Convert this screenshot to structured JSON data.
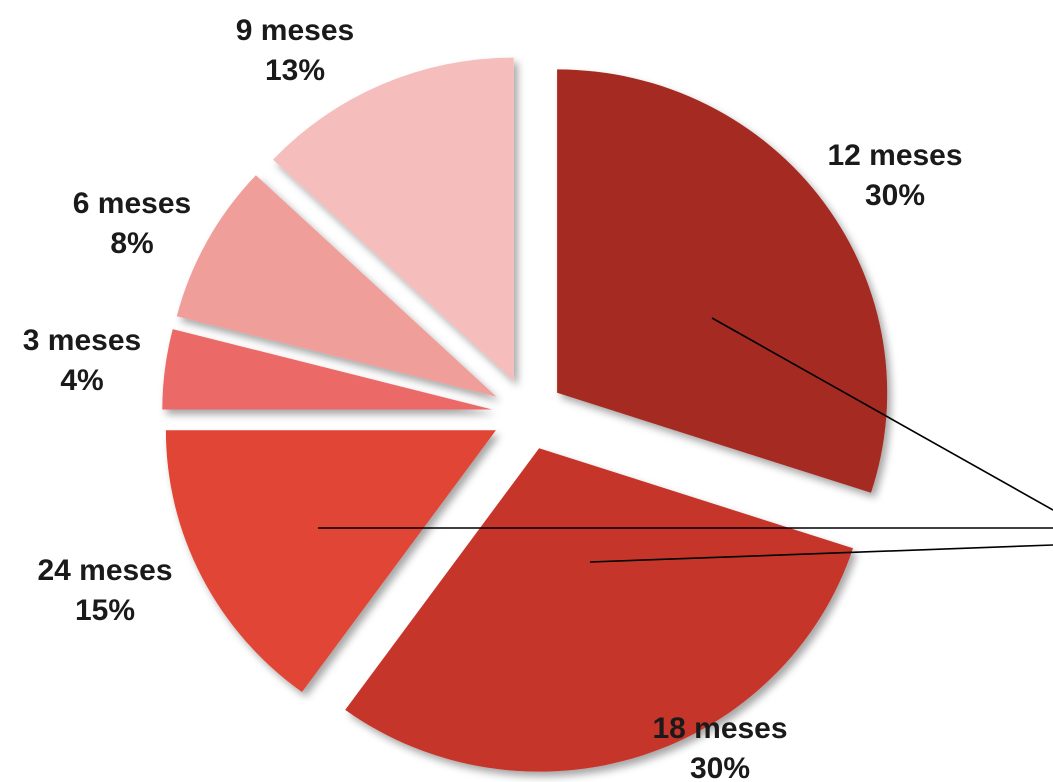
{
  "chart_data": {
    "type": "pie",
    "exploded": true,
    "title": "",
    "slices": [
      {
        "label": "12 meses",
        "pct_label": "30%",
        "value": 30,
        "color": "#A52A22"
      },
      {
        "label": "18 meses",
        "pct_label": "30%",
        "value": 30,
        "color": "#C6362C"
      },
      {
        "label": "24 meses",
        "pct_label": "15%",
        "value": 15,
        "color": "#E04434"
      },
      {
        "label": "3 meses",
        "pct_label": "4%",
        "value": 4,
        "color": "#EB6B67"
      },
      {
        "label": "6 meses",
        "pct_label": "8%",
        "value": 8,
        "color": "#EF9E9A"
      },
      {
        "label": "9 meses",
        "pct_label": "13%",
        "value": 13,
        "color": "#F5BDBB"
      }
    ]
  }
}
